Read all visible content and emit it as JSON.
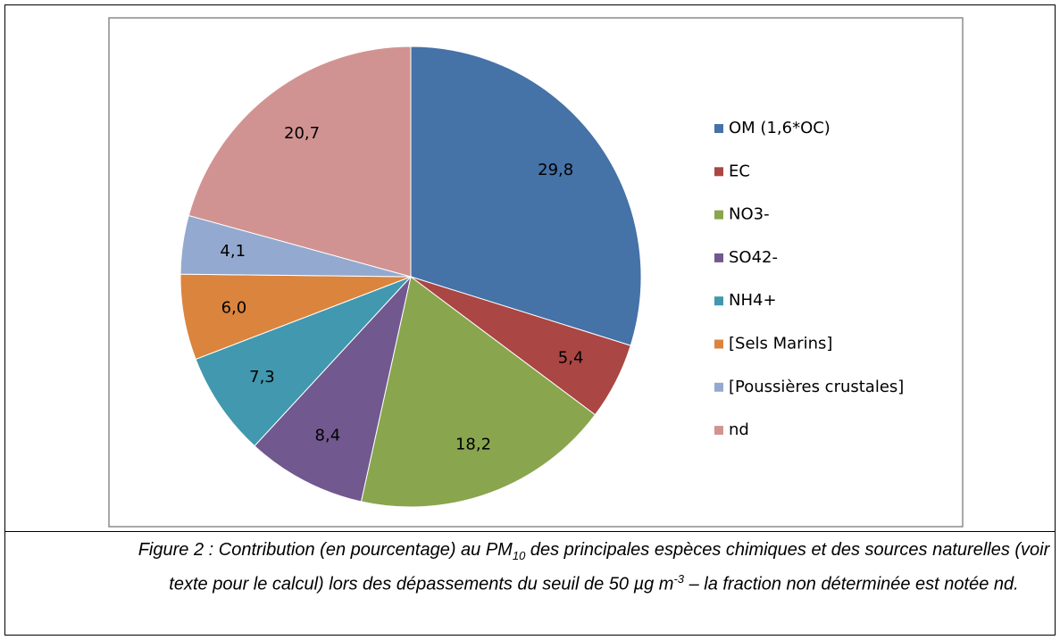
{
  "chart_data": {
    "type": "pie",
    "categories": [
      "OM (1,6*OC)",
      "EC",
      "NO3-",
      "SO42-",
      "NH4+",
      "[Sels Marins]",
      "[Poussières crustales]",
      "nd"
    ],
    "values": [
      29.8,
      5.4,
      18.2,
      8.4,
      7.3,
      6.0,
      4.1,
      20.7
    ],
    "value_labels": [
      "29,8",
      "5,4",
      "18,2",
      "8,4",
      "7,3",
      "6,0",
      "4,1",
      "20,7"
    ],
    "colors": [
      "#4572a7",
      "#aa4643",
      "#89a54e",
      "#71588f",
      "#4198af",
      "#db843d",
      "#93a9cf",
      "#d19392"
    ],
    "legend": "right",
    "caption": [
      "Figure 2 : Contribution (en pourcentage) au PM",
      "10",
      " des principales espèces chimiques et des sources naturelles (voir texte pour le calcul) lors des dépassements du seuil de 50 µg m",
      "-3",
      " – la fraction non déterminée est notée nd."
    ]
  }
}
